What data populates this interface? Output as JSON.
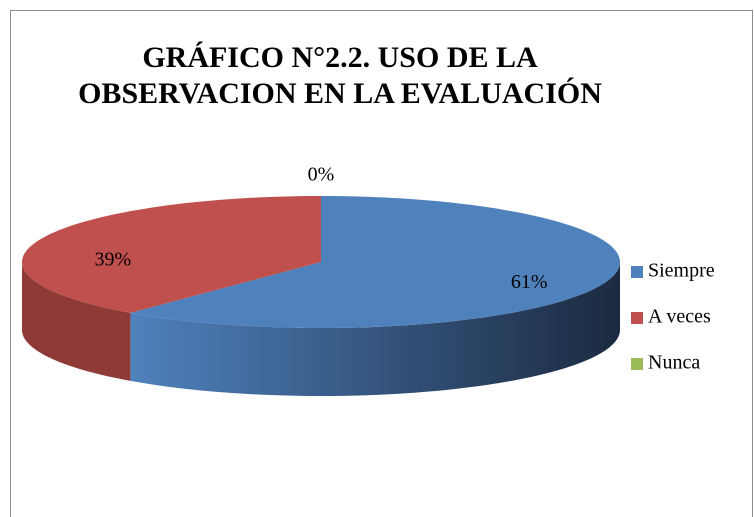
{
  "chart_data": {
    "type": "pie3d",
    "title": [
      "GRÁFICO N°2.2. USO DE LA",
      "OBSERVACION EN LA EVALUACIÓN"
    ],
    "categories": [
      "Siempre",
      "A veces",
      "Nunca"
    ],
    "values": [
      61,
      39,
      0
    ],
    "value_labels": [
      "61%",
      "39%",
      "0%"
    ],
    "colors": [
      "#4f81bd",
      "#c0504d",
      "#9bbb59"
    ],
    "legend": "right"
  }
}
